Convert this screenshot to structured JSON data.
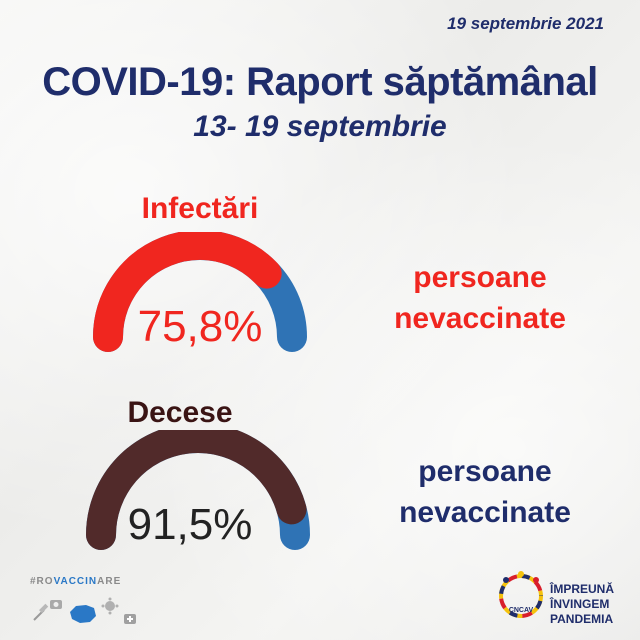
{
  "date": "19 septembrie 2021",
  "title": "COVID-19: Raport săptămânal",
  "subtitle": "13- 19 septembrie",
  "infections": {
    "label": "Infectări",
    "percent_text": "75,8%",
    "fraction": 0.758,
    "caption_line1": "persoane",
    "caption_line2": "nevaccinate",
    "fill_color": "#f0261f",
    "rest_color": "#2f73b5"
  },
  "deaths": {
    "label": "Decese",
    "percent_text": "91,5%",
    "fraction": 0.915,
    "caption_line1": "persoane",
    "caption_line2": "nevaccinate",
    "fill_color": "#512a2a",
    "rest_color": "#2f73b5"
  },
  "footer": {
    "hashtag_prefix": "#RO",
    "hashtag_highlight": "VACCIN",
    "hashtag_suffix": "ARE",
    "logo_badge": "CNCAV",
    "logo_line1": "ÎMPREUNĂ",
    "logo_line2": "ÎNVINGEM",
    "logo_line3": "PANDEMIA"
  },
  "colors": {
    "navy": "#1f2d6b",
    "red": "#f0261f",
    "blue": "#2f73b5",
    "brown": "#512a2a"
  },
  "icons": [
    "syringe-icon",
    "camera-icon",
    "romania-map-icon",
    "virus-icon",
    "medical-kit-icon"
  ]
}
